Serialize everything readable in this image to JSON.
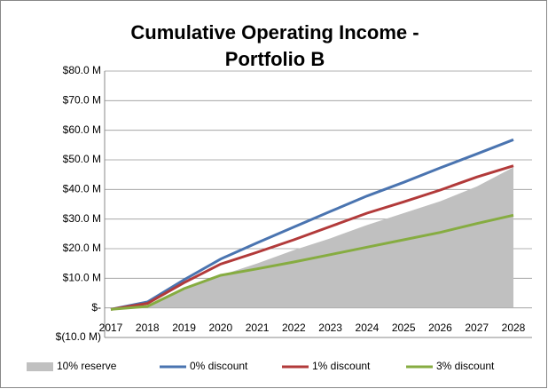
{
  "chart_data": {
    "type": "line",
    "title": [
      "Cumulative Operating Income -",
      "Portfolio B"
    ],
    "categories": [
      "2017",
      "2018",
      "2019",
      "2020",
      "2021",
      "2022",
      "2023",
      "2024",
      "2025",
      "2026",
      "2027",
      "2028"
    ],
    "series": [
      {
        "name": "10% reserve",
        "type": "area",
        "color": "#c0c0c0",
        "values": [
          -0.5,
          0.5,
          6,
          11,
          15,
          19.5,
          23.5,
          28,
          32,
          36,
          41,
          47.5
        ]
      },
      {
        "name": "0% discount",
        "type": "line",
        "color": "#4a74b0",
        "values": [
          -0.5,
          2,
          9.5,
          16.5,
          22,
          27.3,
          32.6,
          37.8,
          42.4,
          47.3,
          52,
          56.8
        ]
      },
      {
        "name": "1% discount",
        "type": "line",
        "color": "#b23a3a",
        "values": [
          -0.5,
          1.5,
          8.5,
          14.8,
          18.8,
          23,
          27.5,
          32,
          35.8,
          39.8,
          44.2,
          48
        ]
      },
      {
        "name": "3% discount",
        "type": "line",
        "color": "#86ac41",
        "values": [
          -0.5,
          0.5,
          6.5,
          11,
          13.2,
          15.5,
          18,
          20.5,
          23,
          25.5,
          28.5,
          31.3
        ]
      }
    ],
    "ylim": [
      -10,
      80
    ],
    "yticks": [
      {
        "value": -10,
        "label": "$(10.0 M)"
      },
      {
        "value": 0,
        "label": "$-"
      },
      {
        "value": 10,
        "label": "$10.0 M"
      },
      {
        "value": 20,
        "label": "$20.0 M"
      },
      {
        "value": 30,
        "label": "$30.0 M"
      },
      {
        "value": 40,
        "label": "$40.0 M"
      },
      {
        "value": 50,
        "label": "$50.0 M"
      },
      {
        "value": 60,
        "label": "$60.0 M"
      },
      {
        "value": 70,
        "label": "$70.0 M"
      },
      {
        "value": 80,
        "label": "$80.0 M"
      }
    ],
    "grid": true,
    "legend": "bottom"
  }
}
